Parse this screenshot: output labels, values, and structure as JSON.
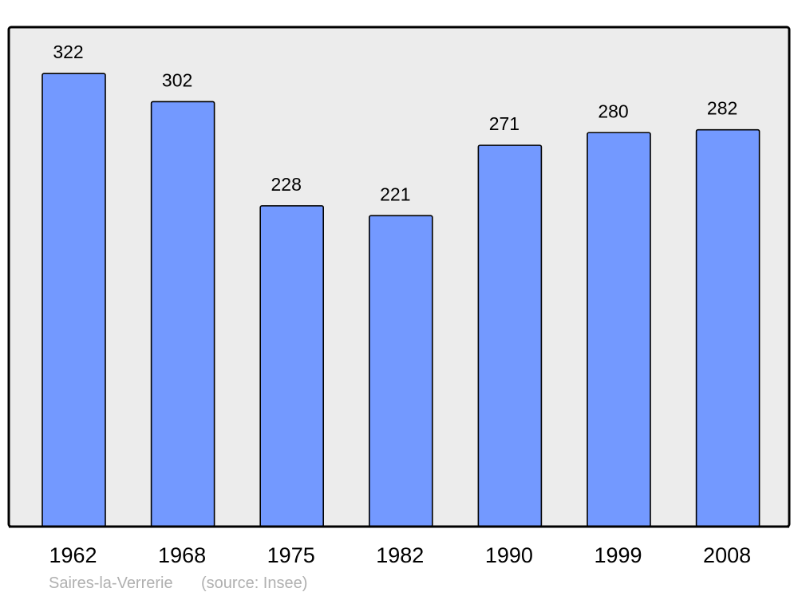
{
  "chart_data": {
    "type": "bar",
    "categories": [
      "1962",
      "1968",
      "1975",
      "1982",
      "1990",
      "1999",
      "2008"
    ],
    "values": [
      322,
      302,
      228,
      221,
      271,
      280,
      282
    ],
    "title": "",
    "xlabel": "",
    "ylabel": "",
    "ylim": [
      0,
      355
    ],
    "grid": false,
    "data_labels": true,
    "colors": {
      "bar": "#7399ff",
      "plot_background": "#ececec",
      "border": "#000000",
      "caption": "#b0b0b0"
    }
  },
  "caption": {
    "place": "Saires-la-Verrerie",
    "source": "(source: Insee)"
  }
}
